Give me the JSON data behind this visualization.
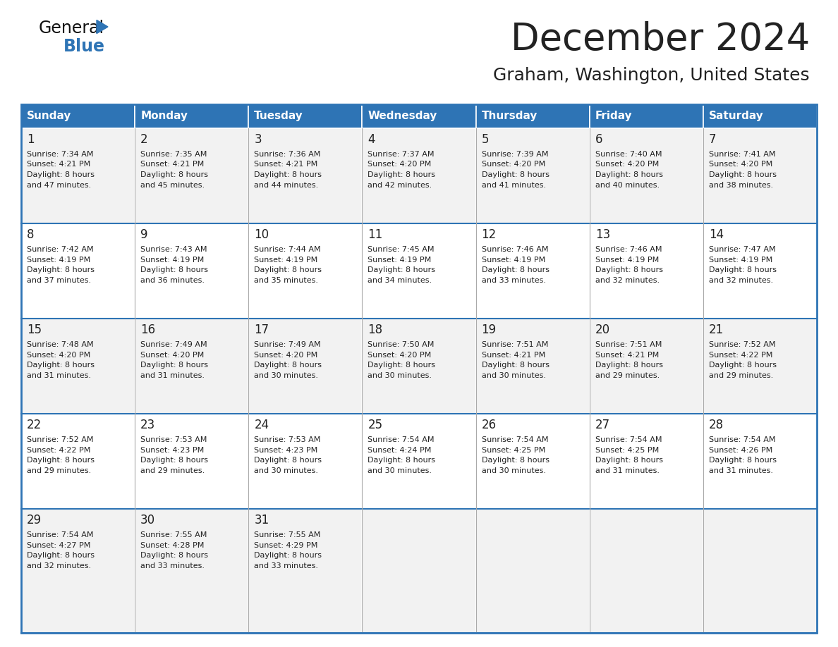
{
  "title": "December 2024",
  "subtitle": "Graham, Washington, United States",
  "header_color": "#2E74B5",
  "header_text_color": "#FFFFFF",
  "cell_bg_even": "#F2F2F2",
  "cell_bg_odd": "#FFFFFF",
  "text_color": "#222222",
  "border_color": "#2E74B5",
  "divider_color": "#2E74B5",
  "col_divider_color": "#AAAAAA",
  "days_of_week": [
    "Sunday",
    "Monday",
    "Tuesday",
    "Wednesday",
    "Thursday",
    "Friday",
    "Saturday"
  ],
  "calendar": [
    [
      {
        "day": 1,
        "sunrise": "7:34 AM",
        "sunset": "4:21 PM",
        "daylight_min": "47"
      },
      {
        "day": 2,
        "sunrise": "7:35 AM",
        "sunset": "4:21 PM",
        "daylight_min": "45"
      },
      {
        "day": 3,
        "sunrise": "7:36 AM",
        "sunset": "4:21 PM",
        "daylight_min": "44"
      },
      {
        "day": 4,
        "sunrise": "7:37 AM",
        "sunset": "4:20 PM",
        "daylight_min": "42"
      },
      {
        "day": 5,
        "sunrise": "7:39 AM",
        "sunset": "4:20 PM",
        "daylight_min": "41"
      },
      {
        "day": 6,
        "sunrise": "7:40 AM",
        "sunset": "4:20 PM",
        "daylight_min": "40"
      },
      {
        "day": 7,
        "sunrise": "7:41 AM",
        "sunset": "4:20 PM",
        "daylight_min": "38"
      }
    ],
    [
      {
        "day": 8,
        "sunrise": "7:42 AM",
        "sunset": "4:19 PM",
        "daylight_min": "37"
      },
      {
        "day": 9,
        "sunrise": "7:43 AM",
        "sunset": "4:19 PM",
        "daylight_min": "36"
      },
      {
        "day": 10,
        "sunrise": "7:44 AM",
        "sunset": "4:19 PM",
        "daylight_min": "35"
      },
      {
        "day": 11,
        "sunrise": "7:45 AM",
        "sunset": "4:19 PM",
        "daylight_min": "34"
      },
      {
        "day": 12,
        "sunrise": "7:46 AM",
        "sunset": "4:19 PM",
        "daylight_min": "33"
      },
      {
        "day": 13,
        "sunrise": "7:46 AM",
        "sunset": "4:19 PM",
        "daylight_min": "32"
      },
      {
        "day": 14,
        "sunrise": "7:47 AM",
        "sunset": "4:19 PM",
        "daylight_min": "32"
      }
    ],
    [
      {
        "day": 15,
        "sunrise": "7:48 AM",
        "sunset": "4:20 PM",
        "daylight_min": "31"
      },
      {
        "day": 16,
        "sunrise": "7:49 AM",
        "sunset": "4:20 PM",
        "daylight_min": "31"
      },
      {
        "day": 17,
        "sunrise": "7:49 AM",
        "sunset": "4:20 PM",
        "daylight_min": "30"
      },
      {
        "day": 18,
        "sunrise": "7:50 AM",
        "sunset": "4:20 PM",
        "daylight_min": "30"
      },
      {
        "day": 19,
        "sunrise": "7:51 AM",
        "sunset": "4:21 PM",
        "daylight_min": "30"
      },
      {
        "day": 20,
        "sunrise": "7:51 AM",
        "sunset": "4:21 PM",
        "daylight_min": "29"
      },
      {
        "day": 21,
        "sunrise": "7:52 AM",
        "sunset": "4:22 PM",
        "daylight_min": "29"
      }
    ],
    [
      {
        "day": 22,
        "sunrise": "7:52 AM",
        "sunset": "4:22 PM",
        "daylight_min": "29"
      },
      {
        "day": 23,
        "sunrise": "7:53 AM",
        "sunset": "4:23 PM",
        "daylight_min": "29"
      },
      {
        "day": 24,
        "sunrise": "7:53 AM",
        "sunset": "4:23 PM",
        "daylight_min": "30"
      },
      {
        "day": 25,
        "sunrise": "7:54 AM",
        "sunset": "4:24 PM",
        "daylight_min": "30"
      },
      {
        "day": 26,
        "sunrise": "7:54 AM",
        "sunset": "4:25 PM",
        "daylight_min": "30"
      },
      {
        "day": 27,
        "sunrise": "7:54 AM",
        "sunset": "4:25 PM",
        "daylight_min": "31"
      },
      {
        "day": 28,
        "sunrise": "7:54 AM",
        "sunset": "4:26 PM",
        "daylight_min": "31"
      }
    ],
    [
      {
        "day": 29,
        "sunrise": "7:54 AM",
        "sunset": "4:27 PM",
        "daylight_min": "32"
      },
      {
        "day": 30,
        "sunrise": "7:55 AM",
        "sunset": "4:28 PM",
        "daylight_min": "33"
      },
      {
        "day": 31,
        "sunrise": "7:55 AM",
        "sunset": "4:29 PM",
        "daylight_min": "33"
      },
      null,
      null,
      null,
      null
    ]
  ],
  "logo_general_color": "#111111",
  "logo_blue_color": "#2E74B5",
  "logo_triangle_color": "#2E74B5",
  "logo_general_fontsize": 17,
  "logo_blue_fontsize": 17,
  "title_fontsize": 38,
  "subtitle_fontsize": 18,
  "header_fontsize": 11,
  "day_num_fontsize": 12,
  "cell_text_fontsize": 8
}
